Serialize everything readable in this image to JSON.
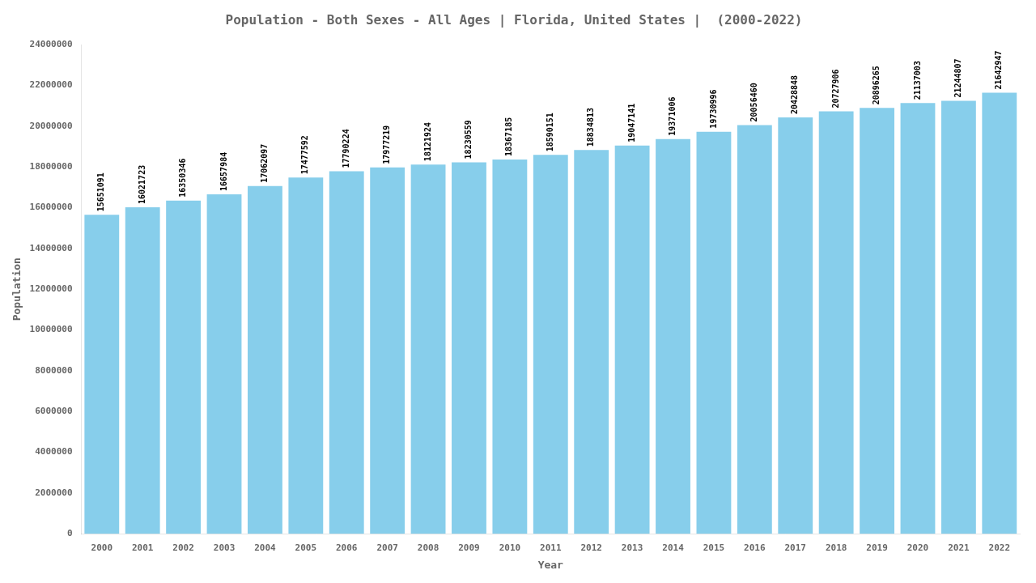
{
  "chart_data": {
    "type": "bar",
    "title": "Population - Both Sexes - All Ages | Florida, United States |  (2000-2022)",
    "x_label": "Year",
    "y_label": "Population",
    "categories": [
      "2000",
      "2001",
      "2002",
      "2003",
      "2004",
      "2005",
      "2006",
      "2007",
      "2008",
      "2009",
      "2010",
      "2011",
      "2012",
      "2013",
      "2014",
      "2015",
      "2016",
      "2017",
      "2018",
      "2019",
      "2020",
      "2021",
      "2022"
    ],
    "values": [
      15651091,
      16021723,
      16350346,
      16657984,
      17062097,
      17477592,
      17790224,
      17977219,
      18121924,
      18230559,
      18367185,
      18590151,
      18834813,
      19047141,
      19371006,
      19730996,
      20056460,
      20428848,
      20727906,
      20896265,
      21137003,
      21244807,
      21642947
    ],
    "color": "#87CEEB",
    "ylim": [
      0,
      24000000
    ],
    "yticks": [
      0,
      2000000,
      4000000,
      6000000,
      8000000,
      10000000,
      12000000,
      14000000,
      16000000,
      18000000,
      20000000,
      22000000,
      24000000
    ],
    "grid": false,
    "data_labels": true
  }
}
